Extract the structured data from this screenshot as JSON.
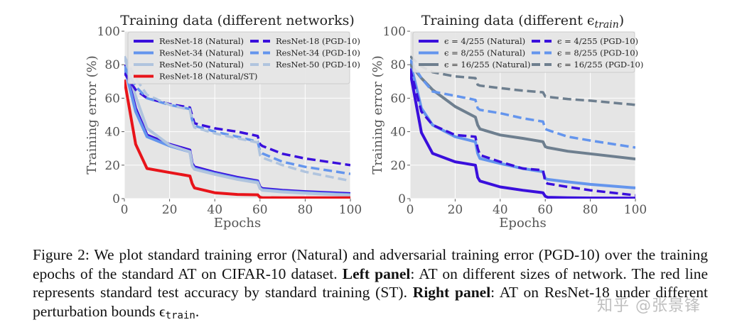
{
  "chart_data": [
    {
      "type": "line",
      "title": "Training data (different networks)",
      "xlabel": "Epochs",
      "ylabel": "Training error (%)",
      "xlim": [
        0,
        100
      ],
      "ylim": [
        0,
        100
      ],
      "xticks": [
        0,
        20,
        40,
        60,
        80,
        100
      ],
      "yticks": [
        0,
        20,
        40,
        60,
        80,
        100
      ],
      "grid": true,
      "legend_placement": "top",
      "x": [
        0,
        5,
        10,
        20,
        29,
        30,
        31,
        40,
        50,
        59,
        60,
        61,
        70,
        80,
        100
      ],
      "series": [
        {
          "name": "ResNet-18 (Natural)",
          "color": "#3a0fdc",
          "dash": false,
          "values": [
            80,
            54,
            38,
            32.5,
            29,
            21,
            19,
            15.7,
            12.7,
            10.6,
            7,
            6,
            5,
            4.2,
            3
          ]
        },
        {
          "name": "ResNet-34 (Natural)",
          "color": "#6495ed",
          "dash": false,
          "values": [
            79,
            52,
            37,
            31.5,
            28,
            20,
            18,
            15,
            12,
            10,
            6.3,
            5.4,
            4.4,
            3.6,
            2.4
          ]
        },
        {
          "name": "ResNet-50 (Natural)",
          "color": "#b0c4de",
          "dash": false,
          "values": [
            85,
            61,
            42,
            32,
            28,
            19.5,
            17.5,
            14.5,
            11.5,
            9.5,
            6,
            5,
            4,
            3.2,
            2
          ]
        },
        {
          "name": "ResNet-18 (Natural/ST)",
          "color": "#e8141a",
          "dash": false,
          "values": [
            71,
            32.5,
            18,
            15.6,
            13.5,
            9,
            6.4,
            3.5,
            2.5,
            2.3,
            0.8,
            0.6,
            0.5,
            0.5,
            0.5
          ]
        },
        {
          "name": "ResNet-18 (PGD-10)",
          "color": "#3a0fdc",
          "dash": true,
          "values": [
            75,
            65,
            60,
            56.5,
            54.4,
            49.5,
            45,
            42,
            40,
            37.4,
            32.5,
            31.5,
            26.8,
            24,
            20
          ]
        },
        {
          "name": "ResNet-34 (PGD-10)",
          "color": "#6495ed",
          "dash": true,
          "values": [
            79,
            67,
            60,
            56,
            53.5,
            47,
            43.5,
            40,
            37,
            34,
            28.3,
            27,
            22,
            19,
            14.8
          ]
        },
        {
          "name": "ResNet-50 (PGD-10)",
          "color": "#b0c4de",
          "dash": true,
          "values": [
            85,
            72,
            62,
            56,
            53,
            46,
            42.5,
            39,
            36,
            33.5,
            26,
            24.5,
            20,
            16,
            10.6
          ]
        }
      ]
    },
    {
      "type": "line",
      "title": "Training data (different ϵ_train)",
      "xlabel": "Epochs",
      "ylabel": "Training error (%)",
      "xlim": [
        0,
        100
      ],
      "ylim": [
        0,
        100
      ],
      "xticks": [
        0,
        20,
        40,
        60,
        80,
        100
      ],
      "yticks": [
        0,
        20,
        40,
        60,
        80,
        100
      ],
      "grid": true,
      "legend_placement": "top",
      "x": [
        0,
        5,
        10,
        20,
        29,
        30,
        31,
        40,
        50,
        59,
        60,
        61,
        70,
        80,
        100
      ],
      "series": [
        {
          "name": "ϵ = 4/255 (Natural)",
          "color": "#3a0fdc",
          "dash": false,
          "values": [
            76,
            39.5,
            27,
            22,
            20,
            12.7,
            10.5,
            7,
            5,
            3.5,
            1.4,
            0.8,
            0.5,
            0.4,
            0.3
          ]
        },
        {
          "name": "ϵ = 8/255 (Natural)",
          "color": "#6495ed",
          "dash": false,
          "values": [
            82,
            54,
            44,
            37,
            34,
            27,
            24,
            21,
            18,
            16,
            12,
            11.5,
            10,
            8.5,
            6.4
          ]
        },
        {
          "name": "ϵ = 16/255 (Natural)",
          "color": "#6e7f8f",
          "dash": false,
          "values": [
            80.5,
            72,
            65,
            55,
            48.7,
            44,
            41.6,
            38,
            36,
            34,
            31,
            30.5,
            28.3,
            26.8,
            23.7
          ]
        },
        {
          "name": "ϵ = 4/255 (PGD-10)",
          "color": "#3a0fdc",
          "dash": true,
          "values": [
            77.7,
            52,
            44,
            38,
            37,
            30,
            26,
            22,
            18,
            17,
            10,
            9,
            7,
            5,
            2
          ]
        },
        {
          "name": "ϵ = 8/255 (PGD-10)",
          "color": "#6495ed",
          "dash": true,
          "values": [
            83,
            72,
            64,
            61.4,
            59,
            54,
            53,
            51,
            48,
            46,
            41.6,
            41,
            37,
            34.7,
            30.5
          ]
        },
        {
          "name": "ϵ = 16/255 (PGD-10)",
          "color": "#6e7f8f",
          "dash": true,
          "values": [
            85,
            79,
            75.5,
            73,
            72,
            68,
            67.5,
            66,
            64.5,
            63.5,
            61,
            60.8,
            59.5,
            58.5,
            56
          ]
        }
      ]
    }
  ],
  "caption": [
    {
      "text": "Figure 2:  We plot standard training error (Natural) and adversarial training error (PGD-10) over the training epochs of the standard AT on CIFAR-10 dataset. ",
      "style": ""
    },
    {
      "text": "Left panel",
      "style": "b"
    },
    {
      "text": ": AT on different sizes of network. The red line represents standard test accuracy by standard training (ST). ",
      "style": ""
    },
    {
      "text": "Right panel",
      "style": "b"
    },
    {
      "text": ": AT on ResNet-18 under different perturbation bounds ϵ",
      "style": ""
    },
    {
      "text": "train",
      "style": "sub"
    },
    {
      "text": ".",
      "style": ""
    }
  ],
  "watermark": "知乎 @张景锋"
}
